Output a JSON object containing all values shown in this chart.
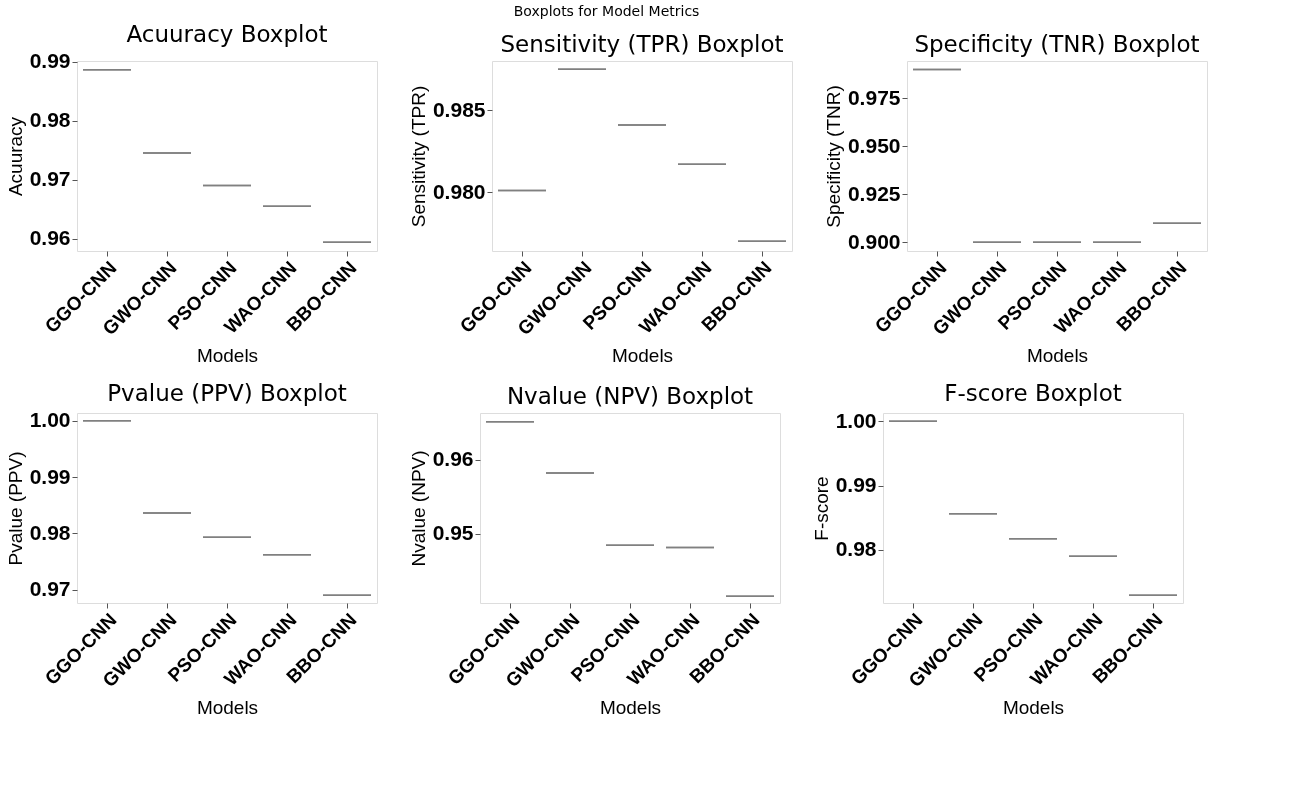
{
  "chart_data": [
    {
      "type": "box",
      "title": "Acuuracy Boxplot",
      "xlabel": "Models",
      "ylabel": "Acuuracy",
      "annotations": [
        "Boxplots for Model Metrics"
      ],
      "categories": [
        "GGO-CNN",
        "GWO-CNN",
        "PSO-CNN",
        "WAO-CNN",
        "BBO-CNN"
      ],
      "color": "#808080",
      "ylim": [
        0.9579,
        0.9901
      ],
      "yticks": [
        0.96,
        0.97,
        0.98,
        0.99
      ],
      "grid": false,
      "boxes": [
        {
          "low": 0.9886,
          "q1": 0.9886,
          "median": 0.9886,
          "q3": 0.9886,
          "high": 0.9886
        },
        {
          "low": 0.9745,
          "q1": 0.9745,
          "median": 0.9745,
          "q3": 0.9745,
          "high": 0.9745
        },
        {
          "low": 0.969,
          "q1": 0.969,
          "median": 0.969,
          "q3": 0.969,
          "high": 0.969
        },
        {
          "low": 0.9655,
          "q1": 0.9655,
          "median": 0.9655,
          "q3": 0.9655,
          "high": 0.9655
        },
        {
          "low": 0.9594,
          "q1": 0.9594,
          "median": 0.9594,
          "q3": 0.9594,
          "high": 0.9594
        }
      ]
    },
    {
      "type": "box",
      "title": "Sensitivity (TPR) Boxplot",
      "xlabel": "Models",
      "ylabel": "Sensitivity (TPR)",
      "categories": [
        "GGO-CNN",
        "GWO-CNN",
        "PSO-CNN",
        "WAO-CNN",
        "BBO-CNN"
      ],
      "color": "#808080",
      "ylim": [
        0.9764,
        0.988
      ],
      "yticks": [
        {
          "value": 0.98,
          "label": "0.980"
        },
        0.985
      ],
      "grid": false,
      "boxes": [
        {
          "low": 0.9801,
          "q1": 0.9801,
          "median": 0.9801,
          "q3": 0.9801,
          "high": 0.9801
        },
        {
          "low": 0.9875,
          "q1": 0.9875,
          "median": 0.9875,
          "q3": 0.9875,
          "high": 0.9875
        },
        {
          "low": 0.9841,
          "q1": 0.9841,
          "median": 0.9841,
          "q3": 0.9841,
          "high": 0.9841
        },
        {
          "low": 0.9817,
          "q1": 0.9817,
          "median": 0.9817,
          "q3": 0.9817,
          "high": 0.9817
        },
        {
          "low": 0.977,
          "q1": 0.977,
          "median": 0.977,
          "q3": 0.977,
          "high": 0.977
        }
      ]
    },
    {
      "type": "box",
      "title": "Specificity (TNR) Boxplot",
      "xlabel": "Models",
      "ylabel": "Specificity (TNR)",
      "categories": [
        "GGO-CNN",
        "GWO-CNN",
        "PSO-CNN",
        "WAO-CNN",
        "BBO-CNN"
      ],
      "color": "#808080",
      "ylim": [
        0.8955,
        0.9944
      ],
      "yticks": [
        {
          "value": 0.9,
          "label": "0.900"
        },
        0.925,
        {
          "value": 0.95,
          "label": "0.950"
        },
        0.975
      ],
      "grid": false,
      "boxes": [
        {
          "low": 0.99,
          "q1": 0.99,
          "median": 0.99,
          "q3": 0.99,
          "high": 0.99
        },
        {
          "low": 0.9,
          "q1": 0.9,
          "median": 0.9,
          "q3": 0.9,
          "high": 0.9
        },
        {
          "low": 0.9,
          "q1": 0.9,
          "median": 0.9,
          "q3": 0.9,
          "high": 0.9
        },
        {
          "low": 0.9,
          "q1": 0.9,
          "median": 0.9,
          "q3": 0.9,
          "high": 0.9
        },
        {
          "low": 0.91,
          "q1": 0.91,
          "median": 0.91,
          "q3": 0.91,
          "high": 0.91
        }
      ]
    },
    {
      "type": "box",
      "title": "Pvalue (PPV) Boxplot",
      "xlabel": "Models",
      "ylabel": "Pvalue (PPV)",
      "categories": [
        "GGO-CNN",
        "GWO-CNN",
        "PSO-CNN",
        "WAO-CNN",
        "BBO-CNN"
      ],
      "color": "#808080",
      "ylim": [
        0.9676,
        1.0014
      ],
      "yticks": [
        {
          "value": 0.97,
          "label": "0.97"
        },
        {
          "value": 0.98,
          "label": "0.98"
        },
        {
          "value": 0.99,
          "label": "0.99"
        },
        {
          "value": 1.0,
          "label": "1.00"
        }
      ],
      "grid": false,
      "boxes": [
        {
          "low": 1.0,
          "q1": 1.0,
          "median": 1.0,
          "q3": 1.0,
          "high": 1.0
        },
        {
          "low": 0.9836,
          "q1": 0.9836,
          "median": 0.9836,
          "q3": 0.9836,
          "high": 0.9836
        },
        {
          "low": 0.9793,
          "q1": 0.9793,
          "median": 0.9793,
          "q3": 0.9793,
          "high": 0.9793
        },
        {
          "low": 0.9762,
          "q1": 0.9762,
          "median": 0.9762,
          "q3": 0.9762,
          "high": 0.9762
        },
        {
          "low": 0.969,
          "q1": 0.969,
          "median": 0.969,
          "q3": 0.969,
          "high": 0.969
        }
      ]
    },
    {
      "type": "box",
      "title": "Nvalue (NPV) Boxplot",
      "xlabel": "Models",
      "ylabel": "Nvalue (NPV)",
      "categories": [
        "GGO-CNN",
        "GWO-CNN",
        "PSO-CNN",
        "WAO-CNN",
        "BBO-CNN"
      ],
      "color": "#808080",
      "ylim": [
        0.9406,
        0.9663
      ],
      "yticks": [
        0.95,
        0.96
      ],
      "grid": false,
      "boxes": [
        {
          "low": 0.9651,
          "q1": 0.9651,
          "median": 0.9651,
          "q3": 0.9651,
          "high": 0.9651
        },
        {
          "low": 0.9582,
          "q1": 0.9582,
          "median": 0.9582,
          "q3": 0.9582,
          "high": 0.9582
        },
        {
          "low": 0.9484,
          "q1": 0.9484,
          "median": 0.9484,
          "q3": 0.9484,
          "high": 0.9484
        },
        {
          "low": 0.9481,
          "q1": 0.9481,
          "median": 0.9481,
          "q3": 0.9481,
          "high": 0.9481
        },
        {
          "low": 0.9415,
          "q1": 0.9415,
          "median": 0.9415,
          "q3": 0.9415,
          "high": 0.9415
        }
      ]
    },
    {
      "type": "box",
      "title": "F-score Boxplot",
      "xlabel": "Models",
      "ylabel": "F-score",
      "categories": [
        "GGO-CNN",
        "GWO-CNN",
        "PSO-CNN",
        "WAO-CNN",
        "BBO-CNN"
      ],
      "color": "#808080",
      "ylim": [
        0.9717,
        1.0013
      ],
      "yticks": [
        {
          "value": 0.98,
          "label": "0.98"
        },
        {
          "value": 0.99,
          "label": "0.99"
        },
        {
          "value": 1.0,
          "label": "1.00"
        }
      ],
      "grid": false,
      "boxes": [
        {
          "low": 1.0,
          "q1": 1.0,
          "median": 1.0,
          "q3": 1.0,
          "high": 1.0
        },
        {
          "low": 0.9856,
          "q1": 0.9856,
          "median": 0.9856,
          "q3": 0.9856,
          "high": 0.9856
        },
        {
          "low": 0.9817,
          "q1": 0.9817,
          "median": 0.9817,
          "q3": 0.9817,
          "high": 0.9817
        },
        {
          "low": 0.979,
          "q1": 0.979,
          "median": 0.979,
          "q3": 0.979,
          "high": 0.979
        },
        {
          "low": 0.9729,
          "q1": 0.9729,
          "median": 0.9729,
          "q3": 0.9729,
          "high": 0.9729
        }
      ]
    }
  ]
}
